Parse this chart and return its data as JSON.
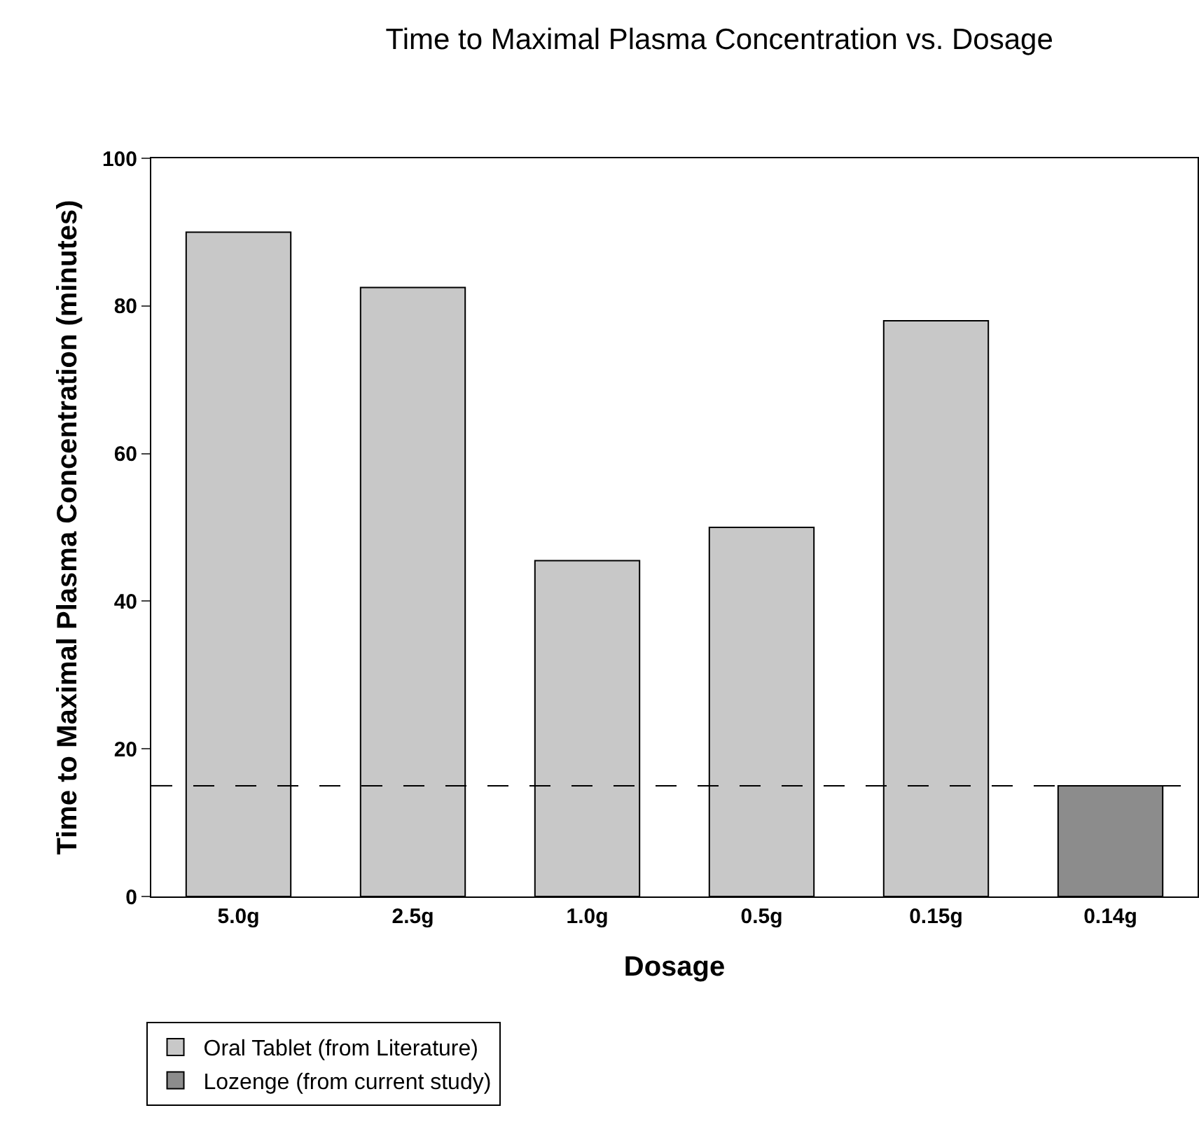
{
  "chart_data": {
    "type": "bar",
    "title": "Time to Maximal Plasma Concentration vs. Dosage",
    "xlabel": "Dosage",
    "ylabel": "Time to Maximal Plasma Concentration (minutes)",
    "categories": [
      "5.0g",
      "2.5g",
      "1.0g",
      "0.5g",
      "0.15g",
      "0.14g"
    ],
    "series": [
      {
        "name": "Oral Tablet (from Literature)",
        "color": "#c8c8c8",
        "values": [
          90,
          82.5,
          45.5,
          50,
          78,
          null
        ]
      },
      {
        "name": "Lozenge (from current study)",
        "color": "#8c8c8c",
        "values": [
          null,
          null,
          null,
          null,
          null,
          15
        ]
      }
    ],
    "ylim": [
      0,
      100
    ],
    "yticks": [
      0,
      20,
      40,
      60,
      80,
      100
    ],
    "grid": false,
    "legend": "bottom left",
    "ref_lines": [
      {
        "axis": "y",
        "value": 15,
        "line_style": "dashed",
        "color": "#000000"
      }
    ]
  }
}
